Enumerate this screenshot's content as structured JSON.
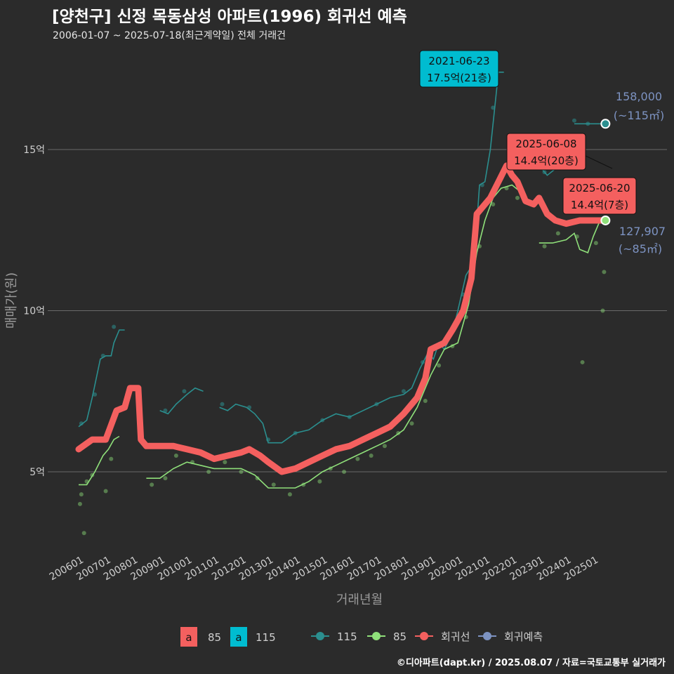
{
  "title": "[양천구] 신정 목동삼성 아파트(1996) 회귀선 예측",
  "subtitle": "2006-01-07 ~ 2025-07-18(최근계약일) 전체 거래건",
  "caption": "©디아파트(dapt.kr) / 2025.08.07 / 자료=국토교통부 실거래가",
  "colors": {
    "background": "#2b2b2b",
    "grid": "#6a6a6a",
    "regression": "#f4605f",
    "area85": "#8fe07a",
    "area115": "#2b8f8f",
    "forecast": "#7d93c2",
    "label115_fill": "#00bcd0",
    "label_red_fill": "#f4605f"
  },
  "legend": {
    "key_a": "a",
    "area85": "85",
    "area115": "115",
    "forecast_label": "회귀예측",
    "regression_label": "회귀선"
  },
  "chart_data": {
    "type": "line",
    "xlabel": "거래년월",
    "ylabel": "매매가(원)",
    "x_ticks": [
      "200601",
      "200701",
      "200801",
      "200901",
      "201001",
      "201101",
      "201201",
      "201301",
      "201401",
      "201501",
      "201601",
      "201701",
      "201801",
      "201901",
      "202001",
      "202101",
      "202201",
      "202301",
      "202401",
      "202501"
    ],
    "y_ticks": [
      {
        "value": 5,
        "label": "5억"
      },
      {
        "value": 10,
        "label": "10억"
      },
      {
        "value": 15,
        "label": "15억"
      }
    ],
    "ylim": [
      2.5,
      17.8
    ],
    "series": [
      {
        "name": "회귀선",
        "points": [
          [
            2006.0,
            5.7
          ],
          [
            2006.5,
            6.0
          ],
          [
            2007.0,
            6.0
          ],
          [
            2007.4,
            6.9
          ],
          [
            2007.7,
            7.0
          ],
          [
            2007.9,
            7.6
          ],
          [
            2008.2,
            7.6
          ],
          [
            2008.3,
            6.0
          ],
          [
            2008.5,
            5.8
          ],
          [
            2009.0,
            5.8
          ],
          [
            2009.5,
            5.8
          ],
          [
            2010.0,
            5.7
          ],
          [
            2010.5,
            5.6
          ],
          [
            2011.0,
            5.4
          ],
          [
            2011.5,
            5.5
          ],
          [
            2012.0,
            5.6
          ],
          [
            2012.3,
            5.7
          ],
          [
            2012.7,
            5.5
          ],
          [
            2013.0,
            5.3
          ],
          [
            2013.5,
            5.0
          ],
          [
            2014.0,
            5.1
          ],
          [
            2014.5,
            5.3
          ],
          [
            2015.0,
            5.5
          ],
          [
            2015.5,
            5.7
          ],
          [
            2016.0,
            5.8
          ],
          [
            2016.5,
            6.0
          ],
          [
            2017.0,
            6.2
          ],
          [
            2017.5,
            6.4
          ],
          [
            2018.0,
            6.8
          ],
          [
            2018.5,
            7.3
          ],
          [
            2018.8,
            7.9
          ],
          [
            2019.0,
            8.8
          ],
          [
            2019.5,
            9.0
          ],
          [
            2019.8,
            9.4
          ],
          [
            2020.2,
            10.0
          ],
          [
            2020.5,
            11.0
          ],
          [
            2020.7,
            13.0
          ],
          [
            2021.0,
            13.3
          ],
          [
            2021.2,
            13.5
          ],
          [
            2021.5,
            14.0
          ],
          [
            2021.8,
            14.5
          ],
          [
            2022.0,
            14.2
          ],
          [
            2022.2,
            14.0
          ],
          [
            2022.5,
            13.4
          ],
          [
            2022.8,
            13.3
          ],
          [
            2023.0,
            13.5
          ],
          [
            2023.3,
            13.0
          ],
          [
            2023.6,
            12.8
          ],
          [
            2024.0,
            12.7
          ],
          [
            2024.5,
            12.8
          ],
          [
            2025.0,
            12.8
          ],
          [
            2025.45,
            12.8
          ]
        ]
      },
      {
        "name": "115",
        "segments": [
          [
            [
              2006.0,
              6.4
            ],
            [
              2006.3,
              6.6
            ],
            [
              2006.5,
              7.3
            ],
            [
              2006.8,
              8.5
            ],
            [
              2007.0,
              8.6
            ],
            [
              2007.2,
              8.6
            ],
            [
              2007.3,
              9.0
            ],
            [
              2007.5,
              9.4
            ],
            [
              2007.7,
              9.4
            ]
          ],
          [
            [
              2009.0,
              6.9
            ],
            [
              2009.3,
              6.8
            ],
            [
              2009.6,
              7.1
            ],
            [
              2010.0,
              7.4
            ],
            [
              2010.3,
              7.6
            ],
            [
              2010.6,
              7.5
            ]
          ],
          [
            [
              2011.2,
              7.0
            ],
            [
              2011.5,
              6.9
            ],
            [
              2011.8,
              7.1
            ],
            [
              2012.2,
              7.0
            ],
            [
              2012.5,
              6.8
            ],
            [
              2012.8,
              6.5
            ],
            [
              2013.0,
              5.9
            ],
            [
              2013.5,
              5.9
            ],
            [
              2014.0,
              6.2
            ],
            [
              2014.5,
              6.3
            ],
            [
              2015.0,
              6.6
            ],
            [
              2015.5,
              6.8
            ],
            [
              2016.0,
              6.7
            ],
            [
              2016.5,
              6.9
            ],
            [
              2017.0,
              7.1
            ],
            [
              2017.5,
              7.3
            ],
            [
              2018.0,
              7.4
            ],
            [
              2018.3,
              7.6
            ],
            [
              2018.6,
              8.2
            ],
            [
              2018.9,
              8.7
            ],
            [
              2019.1,
              8.5
            ],
            [
              2019.3,
              9.0
            ],
            [
              2019.5,
              8.8
            ],
            [
              2019.8,
              9.3
            ],
            [
              2020.0,
              10.0
            ],
            [
              2020.3,
              11.1
            ],
            [
              2020.6,
              11.5
            ],
            [
              2020.8,
              13.9
            ],
            [
              2021.0,
              14.0
            ],
            [
              2021.2,
              15.0
            ],
            [
              2021.5,
              17.4
            ],
            [
              2021.7,
              17.4
            ]
          ],
          [
            [
              2023.0,
              14.5
            ],
            [
              2023.3,
              14.2
            ],
            [
              2023.6,
              14.4
            ]
          ],
          [
            [
              2024.3,
              15.8
            ],
            [
              2024.7,
              15.8
            ],
            [
              2025.0,
              15.8
            ],
            [
              2025.3,
              15.8
            ]
          ]
        ]
      },
      {
        "name": "85",
        "segments": [
          [
            [
              2006.0,
              4.6
            ],
            [
              2006.3,
              4.6
            ],
            [
              2006.6,
              5.0
            ],
            [
              2006.9,
              5.5
            ],
            [
              2007.1,
              5.7
            ],
            [
              2007.3,
              6.0
            ],
            [
              2007.5,
              6.1
            ]
          ],
          [
            [
              2008.5,
              4.8
            ],
            [
              2009.0,
              4.8
            ],
            [
              2009.5,
              5.1
            ],
            [
              2010.0,
              5.3
            ],
            [
              2010.5,
              5.2
            ],
            [
              2011.0,
              5.1
            ],
            [
              2011.5,
              5.1
            ],
            [
              2012.0,
              5.1
            ],
            [
              2012.5,
              4.9
            ],
            [
              2013.0,
              4.5
            ],
            [
              2013.5,
              4.5
            ],
            [
              2014.0,
              4.5
            ],
            [
              2014.5,
              4.7
            ],
            [
              2015.0,
              5.0
            ],
            [
              2015.5,
              5.2
            ],
            [
              2016.0,
              5.4
            ],
            [
              2016.5,
              5.6
            ],
            [
              2017.0,
              5.8
            ],
            [
              2017.5,
              6.0
            ],
            [
              2018.0,
              6.3
            ],
            [
              2018.5,
              7.0
            ],
            [
              2019.0,
              8.0
            ],
            [
              2019.5,
              8.8
            ],
            [
              2020.0,
              9.0
            ],
            [
              2020.4,
              10.2
            ],
            [
              2020.7,
              11.8
            ],
            [
              2021.0,
              12.8
            ],
            [
              2021.3,
              13.5
            ],
            [
              2021.6,
              13.8
            ],
            [
              2022.0,
              13.9
            ],
            [
              2022.3,
              13.7
            ]
          ],
          [
            [
              2023.0,
              12.1
            ],
            [
              2023.5,
              12.1
            ],
            [
              2024.0,
              12.2
            ],
            [
              2024.3,
              12.4
            ],
            [
              2024.5,
              11.9
            ],
            [
              2024.8,
              11.8
            ],
            [
              2025.0,
              12.3
            ],
            [
              2025.3,
              12.9
            ]
          ]
        ]
      },
      {
        "name": "회귀예측",
        "points": [
          [
            2025.45,
            15.8
          ],
          [
            2025.45,
            12.8
          ]
        ]
      }
    ],
    "scatter_85": [
      [
        2006.05,
        4.0
      ],
      [
        2006.1,
        4.3
      ],
      [
        2006.2,
        3.1
      ],
      [
        2006.3,
        4.7
      ],
      [
        2006.5,
        4.9
      ],
      [
        2007.0,
        4.4
      ],
      [
        2007.2,
        5.4
      ],
      [
        2008.7,
        4.6
      ],
      [
        2009.2,
        4.8
      ],
      [
        2009.6,
        5.5
      ],
      [
        2010.2,
        5.3
      ],
      [
        2010.8,
        5.0
      ],
      [
        2011.4,
        5.3
      ],
      [
        2012.0,
        5.0
      ],
      [
        2012.6,
        4.8
      ],
      [
        2013.2,
        4.6
      ],
      [
        2013.8,
        4.3
      ],
      [
        2014.3,
        4.6
      ],
      [
        2014.9,
        4.7
      ],
      [
        2015.3,
        5.1
      ],
      [
        2015.8,
        5.0
      ],
      [
        2016.3,
        5.4
      ],
      [
        2016.8,
        5.5
      ],
      [
        2017.3,
        5.8
      ],
      [
        2017.8,
        6.2
      ],
      [
        2018.3,
        6.5
      ],
      [
        2018.8,
        7.2
      ],
      [
        2019.3,
        8.3
      ],
      [
        2019.8,
        8.9
      ],
      [
        2020.3,
        9.8
      ],
      [
        2020.8,
        12.0
      ],
      [
        2021.3,
        13.3
      ],
      [
        2021.8,
        13.8
      ],
      [
        2022.2,
        13.5
      ],
      [
        2023.2,
        12.0
      ],
      [
        2023.7,
        12.4
      ],
      [
        2024.4,
        12.3
      ],
      [
        2024.6,
        8.4
      ],
      [
        2025.1,
        12.1
      ],
      [
        2025.35,
        10.0
      ],
      [
        2025.4,
        11.2
      ]
    ],
    "scatter_115": [
      [
        2006.1,
        6.5
      ],
      [
        2006.6,
        7.4
      ],
      [
        2006.9,
        8.6
      ],
      [
        2007.3,
        9.5
      ],
      [
        2009.2,
        6.9
      ],
      [
        2009.9,
        7.5
      ],
      [
        2011.3,
        7.1
      ],
      [
        2012.3,
        7.0
      ],
      [
        2013.0,
        6.0
      ],
      [
        2014.0,
        6.2
      ],
      [
        2015.0,
        6.6
      ],
      [
        2016.0,
        6.7
      ],
      [
        2017.0,
        7.1
      ],
      [
        2018.0,
        7.5
      ],
      [
        2018.7,
        8.4
      ],
      [
        2019.4,
        9.0
      ],
      [
        2020.2,
        10.5
      ],
      [
        2020.9,
        13.9
      ],
      [
        2021.3,
        16.3
      ],
      [
        2023.2,
        14.3
      ],
      [
        2024.3,
        15.9
      ],
      [
        2024.8,
        15.8
      ]
    ],
    "annotations": [
      {
        "date": "2021-06-23",
        "price": "17.5억(21층)",
        "x": 2021.47,
        "y": 17.5,
        "series": "115"
      },
      {
        "date": "2025-06-08",
        "price": "14.4억(20층)",
        "x": 2025.43,
        "y": 14.4,
        "series": "회귀선"
      },
      {
        "date": "2025-06-20",
        "price": "14.4억(7층)",
        "x": 2025.46,
        "y": 14.4,
        "series": "85"
      }
    ],
    "forecast_labels": [
      {
        "value": "158,000",
        "area": "(~115㎡)",
        "y": 15.8
      },
      {
        "value": "127,907",
        "area": "(~85㎡)",
        "y": 12.8
      }
    ]
  }
}
